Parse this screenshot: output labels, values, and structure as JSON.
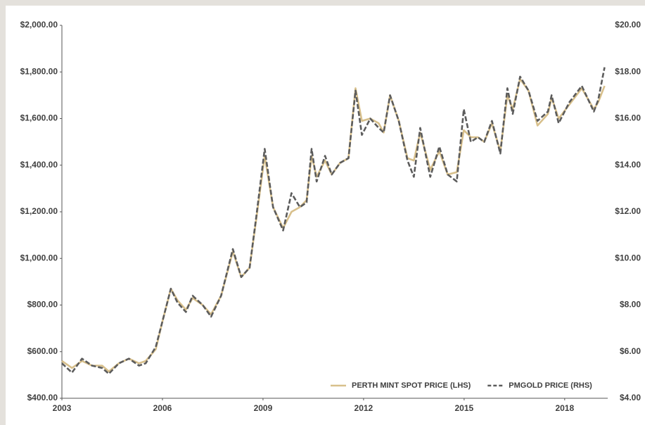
{
  "chart_data": {
    "type": "line",
    "x": [
      2003.0,
      2003.3,
      2003.6,
      2003.9,
      2004.2,
      2004.4,
      2004.7,
      2005.0,
      2005.3,
      2005.5,
      2005.8,
      2006.0,
      2006.25,
      2006.45,
      2006.7,
      2006.9,
      2007.2,
      2007.45,
      2007.75,
      2008.1,
      2008.35,
      2008.6,
      2008.8,
      2009.05,
      2009.3,
      2009.6,
      2009.85,
      2010.1,
      2010.3,
      2010.45,
      2010.6,
      2010.85,
      2011.05,
      2011.3,
      2011.55,
      2011.76,
      2011.95,
      2012.2,
      2012.45,
      2012.6,
      2012.79,
      2013.05,
      2013.31,
      2013.5,
      2013.69,
      2013.99,
      2014.26,
      2014.51,
      2014.78,
      2014.99,
      2015.2,
      2015.41,
      2015.6,
      2015.83,
      2016.08,
      2016.29,
      2016.45,
      2016.67,
      2016.92,
      2017.19,
      2017.5,
      2017.61,
      2017.82,
      2018.14,
      2018.51,
      2018.87,
      2019.0,
      2019.19
    ],
    "series": [
      {
        "name": "PERTH MINT SPOT PRICE (LHS)",
        "color": "#d8c08c",
        "dash": false,
        "values": [
          560,
          530,
          560,
          540,
          540,
          515,
          550,
          570,
          550,
          560,
          610,
          730,
          870,
          820,
          780,
          830,
          800,
          760,
          840,
          1030,
          920,
          960,
          1170,
          1440,
          1220,
          1130,
          1200,
          1220,
          1250,
          1440,
          1350,
          1420,
          1360,
          1410,
          1430,
          1730,
          1590,
          1600,
          1580,
          1540,
          1700,
          1590,
          1430,
          1420,
          1540,
          1380,
          1460,
          1360,
          1370,
          1550,
          1520,
          1520,
          1500,
          1580,
          1460,
          1700,
          1640,
          1770,
          1720,
          1570,
          1620,
          1690,
          1600,
          1660,
          1730,
          1640,
          1670,
          1740
        ]
      },
      {
        "name": "PMGOLD PRICE (RHS)",
        "color": "#5c5c5c",
        "dash": true,
        "axis": "y2",
        "values": [
          5.5,
          5.1,
          5.7,
          5.4,
          5.3,
          5.05,
          5.5,
          5.7,
          5.4,
          5.5,
          6.2,
          7.3,
          8.7,
          8.1,
          7.7,
          8.4,
          8.0,
          7.5,
          8.4,
          10.4,
          9.2,
          9.6,
          11.8,
          14.7,
          12.2,
          11.2,
          12.8,
          12.2,
          12.4,
          14.7,
          13.3,
          14.4,
          13.6,
          14.1,
          14.3,
          17.2,
          15.3,
          16.0,
          15.6,
          15.4,
          17.0,
          15.9,
          14.2,
          13.5,
          15.6,
          13.5,
          14.8,
          13.6,
          13.3,
          16.4,
          15.0,
          15.2,
          15.0,
          15.9,
          14.5,
          17.3,
          16.2,
          17.8,
          17.2,
          15.9,
          16.3,
          17.0,
          15.8,
          16.7,
          17.4,
          16.3,
          16.8,
          18.2
        ]
      }
    ],
    "xlim": [
      2003,
      2019.2
    ],
    "xticks": [
      2003,
      2006,
      2009,
      2012,
      2015,
      2018
    ],
    "ylim": [
      400,
      2000
    ],
    "yticks": [
      {
        "value": 400,
        "label": "$400.00"
      },
      {
        "value": 600,
        "label": "$600.00"
      },
      {
        "value": 800,
        "label": "$800.00"
      },
      {
        "value": 1000,
        "label": "$1,000.00"
      },
      {
        "value": 1200,
        "label": "$1,200.00"
      },
      {
        "value": 1400,
        "label": "$1,400.00"
      },
      {
        "value": 1600,
        "label": "$1,600.00"
      },
      {
        "value": 1800,
        "label": "$1,800.00"
      },
      {
        "value": 2000,
        "label": "$2,000.00"
      }
    ],
    "y2lim": [
      4,
      20
    ],
    "y2ticks": [
      {
        "value": 4,
        "label": "$4.00"
      },
      {
        "value": 6,
        "label": "$6.00"
      },
      {
        "value": 8,
        "label": "$8.00"
      },
      {
        "value": 10,
        "label": "$10.00"
      },
      {
        "value": 12,
        "label": "$12.00"
      },
      {
        "value": 14,
        "label": "$14.00"
      },
      {
        "value": 16,
        "label": "$16.00"
      },
      {
        "value": 18,
        "label": "$18.00"
      },
      {
        "value": 20,
        "label": "$20.00"
      }
    ],
    "legend": "lower right"
  }
}
